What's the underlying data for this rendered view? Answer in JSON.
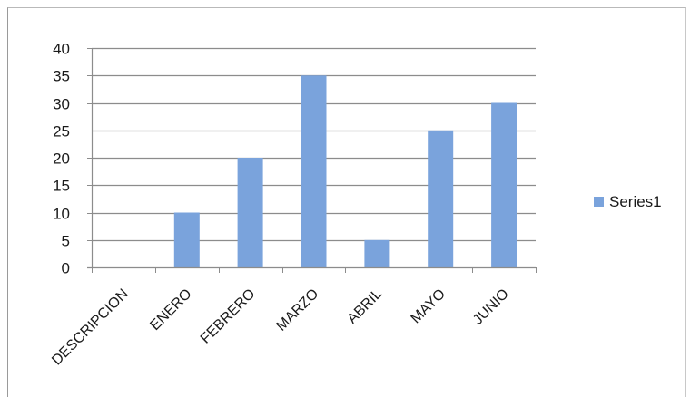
{
  "chart_data": {
    "type": "bar",
    "categories": [
      "DESCRIPCION",
      "ENERO",
      "FEBRERO",
      "MARZO",
      "ABRIL",
      "MAYO",
      "JUNIO"
    ],
    "series": [
      {
        "name": "Series1",
        "values": [
          0,
          10,
          20,
          35,
          5,
          25,
          30
        ],
        "color": "#7aa3dc"
      }
    ],
    "title": "",
    "xlabel": "",
    "ylabel": "",
    "ylim": [
      0,
      40
    ],
    "yticks": [
      "0",
      "5",
      "10",
      "15",
      "20",
      "25",
      "30",
      "35",
      "40"
    ],
    "grid": true,
    "legend_position": "right",
    "colors": {
      "gridline": "#8c8c8c",
      "axis": "#8c8c8c",
      "text": "#1a1a1a"
    }
  }
}
